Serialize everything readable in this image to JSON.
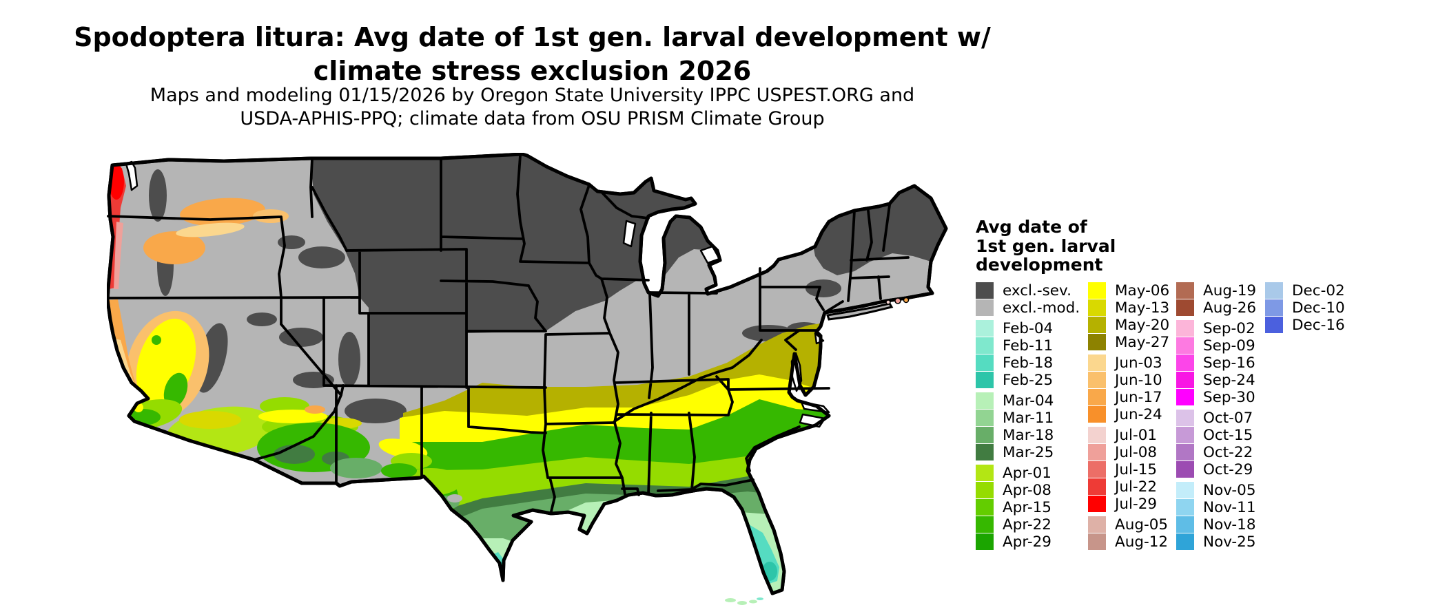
{
  "header": {
    "title_line1": "Spodoptera litura: Avg date of 1st gen. larval development w/",
    "title_line2": "climate stress exclusion 2026",
    "subtitle_line1": "Maps and modeling 01/15/2026 by Oregon State University IPPC USPEST.ORG and",
    "subtitle_line2": "USDA-APHIS-PPQ; climate data from OSU PRISM Climate Group"
  },
  "legend": {
    "title_lines": [
      "Avg date of",
      "1st gen. larval",
      "development"
    ],
    "columns": [
      [
        {
          "label": "excl.-sev.",
          "color": "#4d4d4d"
        },
        {
          "label": "excl.-mod.",
          "color": "#b5b5b5"
        },
        {
          "label": "Feb-04",
          "color": "#abf1dc",
          "gap": true
        },
        {
          "label": "Feb-11",
          "color": "#7fe8cd"
        },
        {
          "label": "Feb-18",
          "color": "#55dcc1"
        },
        {
          "label": "Feb-25",
          "color": "#2dc5a9"
        },
        {
          "label": "Mar-04",
          "color": "#b7f0b7",
          "gap": true
        },
        {
          "label": "Mar-11",
          "color": "#92d492"
        },
        {
          "label": "Mar-18",
          "color": "#68ae68"
        },
        {
          "label": "Mar-25",
          "color": "#417c41"
        },
        {
          "label": "Apr-01",
          "color": "#b3e614",
          "gap": true
        },
        {
          "label": "Apr-08",
          "color": "#95dc00"
        },
        {
          "label": "Apr-15",
          "color": "#63cd00"
        },
        {
          "label": "Apr-22",
          "color": "#36b800"
        },
        {
          "label": "Apr-29",
          "color": "#1ba500"
        }
      ],
      [
        {
          "label": "May-06",
          "color": "#ffff00"
        },
        {
          "label": "May-13",
          "color": "#d9d900"
        },
        {
          "label": "May-20",
          "color": "#b5b100"
        },
        {
          "label": "May-27",
          "color": "#8d8200"
        },
        {
          "label": "Jun-03",
          "color": "#fbd78e",
          "gap": true
        },
        {
          "label": "Jun-10",
          "color": "#fac06c"
        },
        {
          "label": "Jun-17",
          "color": "#f9a84a"
        },
        {
          "label": "Jun-24",
          "color": "#f8902a"
        },
        {
          "label": "Jul-01",
          "color": "#f3d2cf",
          "gap": true
        },
        {
          "label": "Jul-08",
          "color": "#efa09a"
        },
        {
          "label": "Jul-15",
          "color": "#ec6e67"
        },
        {
          "label": "Jul-22",
          "color": "#ee3b36"
        },
        {
          "label": "Jul-29",
          "color": "#ff0000"
        },
        {
          "label": "Aug-05",
          "color": "#deb1a7",
          "gap": true
        },
        {
          "label": "Aug-12",
          "color": "#c7958a"
        }
      ],
      [
        {
          "label": "Aug-19",
          "color": "#b26b53"
        },
        {
          "label": "Aug-26",
          "color": "#9e4a31"
        },
        {
          "label": "Sep-02",
          "color": "#fcb5d9",
          "gap": true
        },
        {
          "label": "Sep-09",
          "color": "#fd7ae1"
        },
        {
          "label": "Sep-16",
          "color": "#fc45e9"
        },
        {
          "label": "Sep-24",
          "color": "#f816e4"
        },
        {
          "label": "Sep-30",
          "color": "#ff00ff"
        },
        {
          "label": "Oct-07",
          "color": "#dcc2e8",
          "gap": true
        },
        {
          "label": "Oct-15",
          "color": "#c79ad7"
        },
        {
          "label": "Oct-22",
          "color": "#b177c5"
        },
        {
          "label": "Oct-29",
          "color": "#9c4cb2"
        },
        {
          "label": "Nov-05",
          "color": "#c3edfa",
          "gap": true
        },
        {
          "label": "Nov-11",
          "color": "#8fd5f0"
        },
        {
          "label": "Nov-18",
          "color": "#5fbde6"
        },
        {
          "label": "Nov-25",
          "color": "#2fa4d8"
        }
      ],
      [
        {
          "label": "Dec-02",
          "color": "#a9c9e9"
        },
        {
          "label": "Dec-10",
          "color": "#7e99e5"
        },
        {
          "label": "Dec-16",
          "color": "#4b60de"
        }
      ]
    ]
  }
}
